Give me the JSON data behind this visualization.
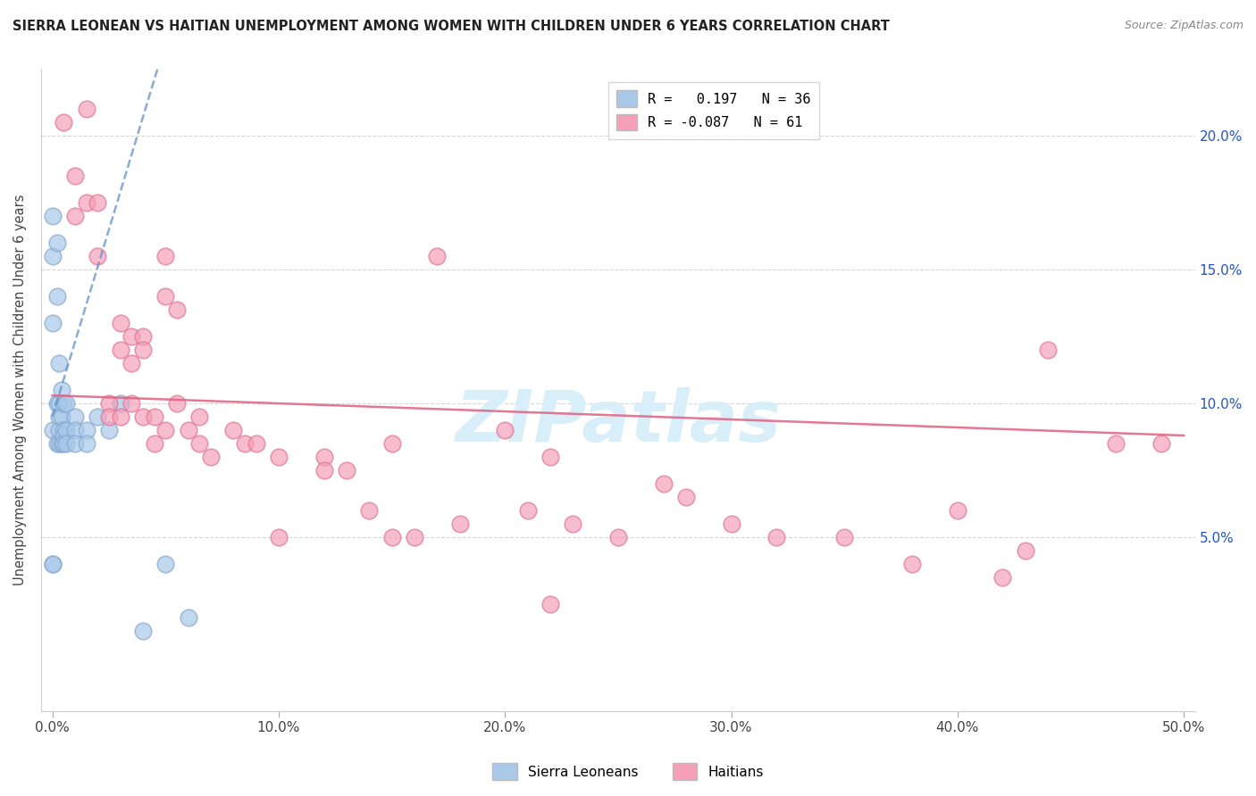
{
  "title": "SIERRA LEONEAN VS HAITIAN UNEMPLOYMENT AMONG WOMEN WITH CHILDREN UNDER 6 YEARS CORRELATION CHART",
  "source": "Source: ZipAtlas.com",
  "ylabel": "Unemployment Among Women with Children Under 6 years",
  "x_ticks": [
    0.0,
    0.1,
    0.2,
    0.3,
    0.4,
    0.5
  ],
  "x_tick_labels": [
    "0.0%",
    "10.0%",
    "20.0%",
    "30.0%",
    "40.0%",
    "50.0%"
  ],
  "y_ticks": [
    0.05,
    0.1,
    0.15,
    0.2
  ],
  "y_tick_labels_right": [
    "5.0%",
    "10.0%",
    "15.0%",
    "20.0%"
  ],
  "xlim": [
    -0.005,
    0.505
  ],
  "ylim": [
    -0.015,
    0.225
  ],
  "legend_entries": [
    {
      "label": "R =   0.197   N = 36",
      "color": "#aac8e8"
    },
    {
      "label": "R = -0.087   N = 61",
      "color": "#f4a0b8"
    }
  ],
  "sierra_leone_color": "#a8c8e8",
  "sierra_leone_edge": "#88aad0",
  "haiti_color": "#f4a0b8",
  "haiti_edge": "#e07898",
  "trendline_sierra_color": "#6090c8",
  "trendline_haiti_color": "#e06080",
  "watermark_text": "ZIPatlas",
  "watermark_color": "#d8eef8",
  "sierra_leone_x": [
    0.0,
    0.0,
    0.0,
    0.0,
    0.0,
    0.0,
    0.002,
    0.002,
    0.002,
    0.002,
    0.003,
    0.003,
    0.003,
    0.003,
    0.003,
    0.004,
    0.004,
    0.004,
    0.005,
    0.005,
    0.005,
    0.005,
    0.006,
    0.006,
    0.006,
    0.01,
    0.01,
    0.01,
    0.015,
    0.015,
    0.02,
    0.025,
    0.03,
    0.04,
    0.05,
    0.06
  ],
  "sierra_leone_y": [
    0.17,
    0.155,
    0.13,
    0.09,
    0.04,
    0.04,
    0.16,
    0.14,
    0.1,
    0.085,
    0.115,
    0.1,
    0.095,
    0.09,
    0.085,
    0.105,
    0.095,
    0.085,
    0.1,
    0.09,
    0.088,
    0.085,
    0.1,
    0.09,
    0.085,
    0.095,
    0.09,
    0.085,
    0.09,
    0.085,
    0.095,
    0.09,
    0.1,
    0.015,
    0.04,
    0.02
  ],
  "haiti_x": [
    0.005,
    0.01,
    0.01,
    0.015,
    0.015,
    0.02,
    0.02,
    0.025,
    0.025,
    0.03,
    0.03,
    0.03,
    0.035,
    0.035,
    0.035,
    0.04,
    0.04,
    0.04,
    0.045,
    0.045,
    0.05,
    0.05,
    0.05,
    0.055,
    0.055,
    0.06,
    0.065,
    0.065,
    0.07,
    0.08,
    0.085,
    0.09,
    0.1,
    0.1,
    0.12,
    0.12,
    0.13,
    0.14,
    0.15,
    0.15,
    0.16,
    0.17,
    0.18,
    0.2,
    0.21,
    0.22,
    0.23,
    0.25,
    0.27,
    0.28,
    0.3,
    0.32,
    0.35,
    0.38,
    0.4,
    0.42,
    0.43,
    0.44,
    0.47,
    0.49,
    0.22
  ],
  "haiti_y": [
    0.205,
    0.185,
    0.17,
    0.21,
    0.175,
    0.175,
    0.155,
    0.1,
    0.095,
    0.13,
    0.12,
    0.095,
    0.125,
    0.115,
    0.1,
    0.125,
    0.12,
    0.095,
    0.095,
    0.085,
    0.155,
    0.14,
    0.09,
    0.135,
    0.1,
    0.09,
    0.095,
    0.085,
    0.08,
    0.09,
    0.085,
    0.085,
    0.08,
    0.05,
    0.08,
    0.075,
    0.075,
    0.06,
    0.085,
    0.05,
    0.05,
    0.155,
    0.055,
    0.09,
    0.06,
    0.08,
    0.055,
    0.05,
    0.07,
    0.065,
    0.055,
    0.05,
    0.05,
    0.04,
    0.06,
    0.035,
    0.045,
    0.12,
    0.085,
    0.085,
    0.025
  ],
  "bottom_legend": [
    {
      "label": "Sierra Leoneans",
      "color": "#aac8e8"
    },
    {
      "label": "Haitians",
      "color": "#f4a0b8"
    }
  ]
}
